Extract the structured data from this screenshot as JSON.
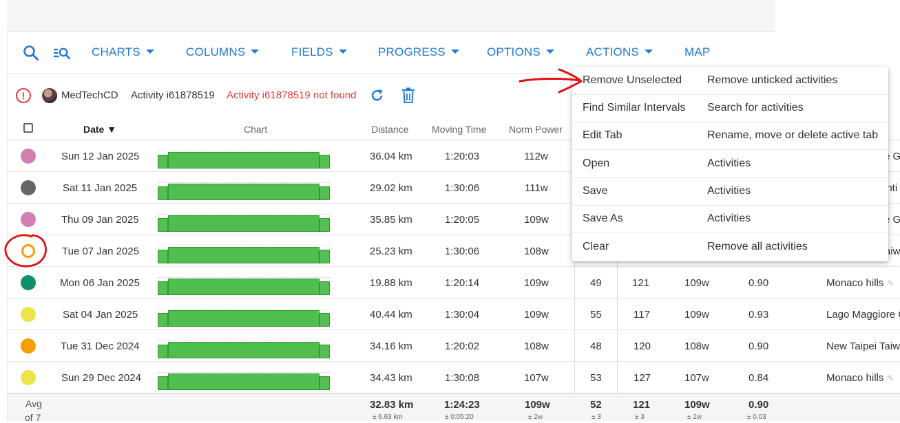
{
  "toolbar": {
    "items": [
      {
        "label": "CHARTS",
        "dropdown": true
      },
      {
        "label": "COLUMNS",
        "dropdown": true
      },
      {
        "label": "FIELDS",
        "dropdown": true
      },
      {
        "label": "PROGRESS",
        "dropdown": true
      },
      {
        "label": "OPTIONS",
        "dropdown": true
      },
      {
        "label": "ACTIONS",
        "dropdown": true
      },
      {
        "label": "MAP",
        "dropdown": false
      }
    ]
  },
  "info": {
    "user": "MedTechCD",
    "activity": "Activity i61878519",
    "error": "Activity i61878519 not found"
  },
  "table": {
    "headers": {
      "date": "Date",
      "chart": "Chart",
      "distance": "Distance",
      "moving_time": "Moving Time",
      "norm_power": "Norm Power"
    },
    "rows": [
      {
        "color": "#d27fb3",
        "date": "Sun 12 Jan 2025",
        "distance": "36.04 km",
        "moving_time": "1:20:03",
        "norm_power": "112w",
        "c1": "",
        "c2": "",
        "c3": "",
        "c4": "",
        "name": "re G"
      },
      {
        "color": "#666666",
        "date": "Sat 11 Jan 2025",
        "distance": "29.02 km",
        "moving_time": "1:30:06",
        "norm_power": "111w",
        "c1": "",
        "c2": "",
        "c3": "",
        "c4": "",
        "name": "enti"
      },
      {
        "color": "#d27fb3",
        "date": "Thu 09 Jan 2025",
        "distance": "35.85 km",
        "moving_time": "1:20:05",
        "norm_power": "109w",
        "c1": "",
        "c2": "",
        "c3": "",
        "c4": "",
        "name": "re G"
      },
      {
        "color": "#f5a000",
        "ring": true,
        "date": "Tue 07 Jan 2025",
        "distance": "25.23 km",
        "moving_time": "1:30:06",
        "norm_power": "108w",
        "c1": "",
        "c2": "",
        "c3": "",
        "c4": "",
        "name": "aiw"
      },
      {
        "color": "#0e8f6e",
        "date": "Mon 06 Jan 2025",
        "distance": "19.88 km",
        "moving_time": "1:20:14",
        "norm_power": "109w",
        "c1": "49",
        "c2": "121",
        "c3": "109w",
        "c4": "0.90",
        "name": "Monaco hills"
      },
      {
        "color": "#ede34a",
        "date": "Sat 04 Jan 2025",
        "distance": "40.44 km",
        "moving_time": "1:30:04",
        "norm_power": "109w",
        "c1": "55",
        "c2": "117",
        "c3": "109w",
        "c4": "0.93",
        "name": "Lago Maggiore G"
      },
      {
        "color": "#f5a000",
        "date": "Tue 31 Dec 2024",
        "distance": "34.16 km",
        "moving_time": "1:20:02",
        "norm_power": "108w",
        "c1": "48",
        "c2": "120",
        "c3": "108w",
        "c4": "0.90",
        "name": "New Taipei Taiw"
      },
      {
        "color": "#ede34a",
        "date": "Sun 29 Dec 2024",
        "distance": "34.43 km",
        "moving_time": "1:30:08",
        "norm_power": "107w",
        "c1": "53",
        "c2": "127",
        "c3": "107w",
        "c4": "0.84",
        "name": "Monaco hills"
      }
    ]
  },
  "footer": {
    "label1": "Avg",
    "label2": "of 7",
    "distance": "32.83 km",
    "distance_sd": "± 6.63 km",
    "moving_time": "1:24:23",
    "moving_time_sd": "± 0:05:20",
    "norm_power": "109w",
    "norm_power_sd": "± 2w",
    "c1": "52",
    "c1_sd": "± 3",
    "c2": "121",
    "c2_sd": "± 3",
    "c3": "109w",
    "c3_sd": "± 2w",
    "c4": "0.90",
    "c4_sd": "± 0.03"
  },
  "menu": {
    "items": [
      {
        "action": "Remove Unselected",
        "description": "Remove unticked activities"
      },
      {
        "action": "Find Similar Intervals",
        "description": "Search for activities"
      },
      {
        "action": "Edit Tab",
        "description": "Rename, move or delete active tab"
      },
      {
        "action": "Open",
        "description": "Activities"
      },
      {
        "action": "Save",
        "description": "Activities"
      },
      {
        "action": "Save As",
        "description": "Activities"
      },
      {
        "action": "Clear",
        "description": "Remove all activities"
      }
    ]
  },
  "colors": {
    "accent": "#1e7ad6",
    "error": "#e53935",
    "bar_green": "#4fbe4f",
    "annotation_red": "#e01010"
  }
}
